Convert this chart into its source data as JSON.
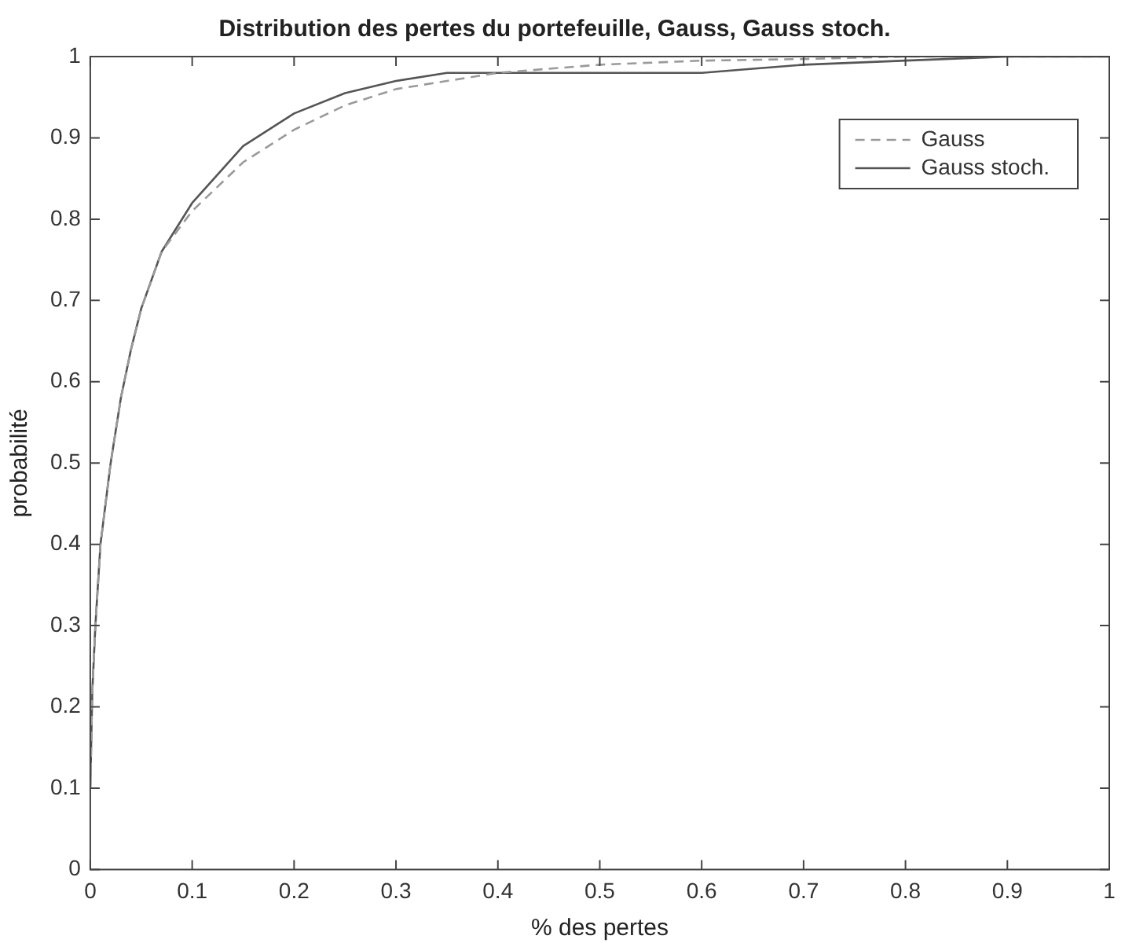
{
  "chart_data": {
    "type": "line",
    "title": "Distribution des pertes du portefeuille, Gauss, Gauss stoch.",
    "xlabel": "% des pertes",
    "ylabel": "probabilité",
    "xlim": [
      0,
      1
    ],
    "ylim": [
      0,
      1
    ],
    "xticks": [
      0,
      0.1,
      0.2,
      0.3,
      0.4,
      0.5,
      0.6,
      0.7,
      0.8,
      0.9,
      1
    ],
    "yticks": [
      0,
      0.1,
      0.2,
      0.3,
      0.4,
      0.5,
      0.6,
      0.7,
      0.8,
      0.9,
      1
    ],
    "grid": false,
    "legend": "top right",
    "marker": "none",
    "series": [
      {
        "name": "Gauss",
        "color": "#9a9a9a",
        "line_style": "dashed",
        "x": [
          0,
          0.002,
          0.005,
          0.01,
          0.02,
          0.03,
          0.04,
          0.05,
          0.07,
          0.1,
          0.15,
          0.2,
          0.25,
          0.3,
          0.35,
          0.4,
          0.5,
          0.6,
          0.7,
          0.8,
          0.9,
          1
        ],
        "values": [
          0.1,
          0.22,
          0.3,
          0.4,
          0.5,
          0.58,
          0.64,
          0.69,
          0.76,
          0.81,
          0.87,
          0.91,
          0.94,
          0.96,
          0.97,
          0.98,
          0.99,
          0.995,
          0.997,
          1,
          1,
          1
        ]
      },
      {
        "name": "Gauss stoch.",
        "color": "#555555",
        "line_style": "solid",
        "x": [
          0,
          0.002,
          0.005,
          0.01,
          0.02,
          0.03,
          0.04,
          0.05,
          0.07,
          0.1,
          0.15,
          0.2,
          0.25,
          0.3,
          0.35,
          0.45,
          0.6,
          0.65,
          0.7,
          0.8,
          0.9,
          1
        ],
        "values": [
          0.1,
          0.22,
          0.3,
          0.4,
          0.5,
          0.58,
          0.64,
          0.69,
          0.76,
          0.82,
          0.89,
          0.93,
          0.955,
          0.97,
          0.98,
          0.98,
          0.98,
          0.985,
          0.99,
          0.995,
          1,
          1
        ]
      }
    ]
  }
}
